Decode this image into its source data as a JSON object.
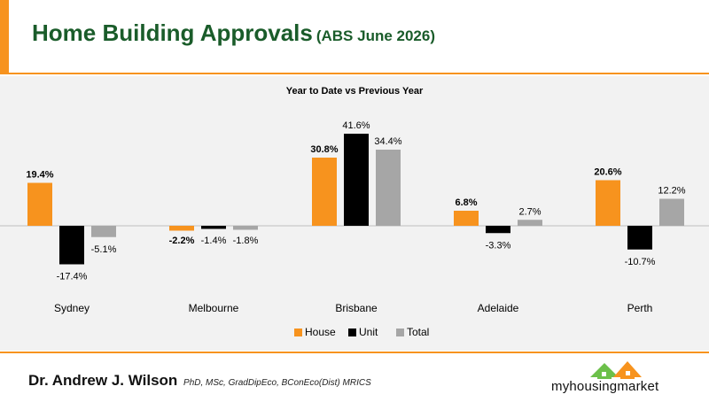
{
  "header": {
    "title": "Home Building Approvals",
    "subtitle": "(ABS June 2026)"
  },
  "chart_data": {
    "type": "bar",
    "title": "Year to Date vs Previous Year",
    "categories": [
      "Sydney",
      "Melbourne",
      "Brisbane",
      "Adelaide",
      "Perth"
    ],
    "series": [
      {
        "name": "House",
        "color": "#f7931e",
        "values": [
          19.4,
          -2.2,
          30.8,
          6.8,
          20.6
        ]
      },
      {
        "name": "Unit",
        "color": "#000000",
        "values": [
          -17.4,
          -1.4,
          41.6,
          -3.3,
          -10.7
        ]
      },
      {
        "name": "Total",
        "color": "#a6a6a6",
        "values": [
          -5.1,
          -1.8,
          34.4,
          2.7,
          12.2
        ]
      }
    ],
    "labels": [
      [
        "19.4%",
        "-17.4%",
        "-5.1%"
      ],
      [
        "-2.2%",
        "-1.4%",
        "-1.8%"
      ],
      [
        "30.8%",
        "41.6%",
        "34.4%"
      ],
      [
        "6.8%",
        "-3.3%",
        "2.7%"
      ],
      [
        "20.6%",
        "-10.7%",
        "12.2%"
      ]
    ],
    "ylim": [
      -20,
      45
    ],
    "legend": "bottom",
    "grid": false
  },
  "footer": {
    "author": "Dr. Andrew J. Wilson",
    "credentials": "PhD, MSc, GradDipEco, BConEco(Dist) MRICS",
    "logo_text": "myhousingmarket",
    "logo_colors": {
      "green": "#6cc04a",
      "orange": "#f7931e"
    }
  }
}
